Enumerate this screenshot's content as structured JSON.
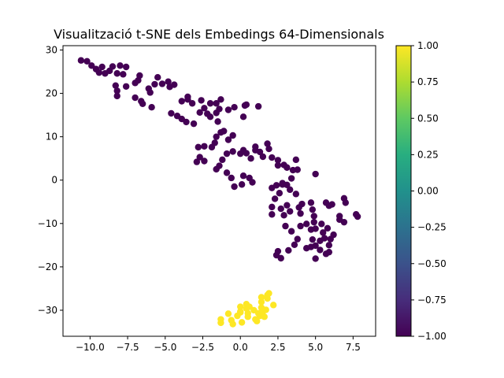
{
  "chart_data": {
    "type": "scatter",
    "title": "Visualització t-SNE dels Embedings 64-Dimensionals",
    "xlabel": "",
    "ylabel": "",
    "xlim": [
      -11.8,
      9.0
    ],
    "ylim": [
      -36.0,
      31.0
    ],
    "x_ticks": [
      "−10.0",
      "−7.5",
      "−5.0",
      "−2.5",
      "0.0",
      "2.5",
      "5.0",
      "7.5"
    ],
    "x_tick_values": [
      -10.0,
      -7.5,
      -5.0,
      -2.5,
      0.0,
      2.5,
      5.0,
      7.5
    ],
    "y_ticks": [
      "−30",
      "−20",
      "−10",
      "0",
      "10",
      "20",
      "30"
    ],
    "y_tick_values": [
      -30,
      -20,
      -10,
      0,
      10,
      20,
      30
    ],
    "grid": false,
    "colormap": "viridis",
    "colorbar": {
      "range": [
        -1.0,
        1.0
      ],
      "ticks": [
        "−1.00",
        "−0.75",
        "−0.50",
        "−0.25",
        "0.00",
        "0.25",
        "0.50",
        "0.75",
        "1.00"
      ],
      "tick_values": [
        -1.0,
        -0.75,
        -0.5,
        -0.25,
        0.0,
        0.25,
        0.5,
        0.75,
        1.0
      ]
    },
    "series": [
      {
        "label_value": -1,
        "color": "#440154",
        "points": [
          [
            -10.6,
            27.6
          ],
          [
            -10.2,
            27.4
          ],
          [
            -9.9,
            26.4
          ],
          [
            -9.6,
            25.6
          ],
          [
            -9.4,
            24.8
          ],
          [
            -9.2,
            26.1
          ],
          [
            -9.0,
            24.6
          ],
          [
            -8.7,
            25.2
          ],
          [
            -8.5,
            26.2
          ],
          [
            -8.2,
            24.6
          ],
          [
            -8.0,
            26.4
          ],
          [
            -7.8,
            24.4
          ],
          [
            -7.6,
            26.1
          ],
          [
            -8.3,
            21.8
          ],
          [
            -8.2,
            20.6
          ],
          [
            -8.2,
            19.4
          ],
          [
            -7.6,
            21.6
          ],
          [
            -7.0,
            22.4
          ],
          [
            -6.8,
            23.0
          ],
          [
            -6.7,
            24.1
          ],
          [
            -6.6,
            18.2
          ],
          [
            -6.5,
            17.6
          ],
          [
            -6.1,
            21.1
          ],
          [
            -6.0,
            20.2
          ],
          [
            -5.9,
            16.8
          ],
          [
            -5.7,
            22.1
          ],
          [
            -5.5,
            23.7
          ],
          [
            -5.2,
            22.2
          ],
          [
            -7.0,
            19.0
          ],
          [
            -4.8,
            22.7
          ],
          [
            -4.7,
            21.5
          ],
          [
            -4.4,
            22.0
          ],
          [
            -3.9,
            18.2
          ],
          [
            -3.5,
            19.2
          ],
          [
            -3.5,
            18.6
          ],
          [
            -3.2,
            17.7
          ],
          [
            -2.6,
            18.4
          ],
          [
            -2.4,
            16.6
          ],
          [
            -2.0,
            17.7
          ],
          [
            -1.6,
            17.7
          ],
          [
            -1.3,
            18.6
          ],
          [
            -0.8,
            16.2
          ],
          [
            -0.4,
            16.8
          ],
          [
            0.3,
            17.2
          ],
          [
            0.2,
            14.6
          ],
          [
            0.4,
            17.4
          ],
          [
            1.2,
            17.0
          ],
          [
            -4.6,
            15.4
          ],
          [
            -4.2,
            14.8
          ],
          [
            -3.9,
            14.1
          ],
          [
            -3.6,
            13.4
          ],
          [
            -3.1,
            13.0
          ],
          [
            -2.7,
            15.6
          ],
          [
            -2.2,
            15.3
          ],
          [
            -2.0,
            14.6
          ],
          [
            -1.6,
            15.5
          ],
          [
            -1.4,
            16.4
          ],
          [
            -1.5,
            13.5
          ],
          [
            -1.1,
            11.3
          ],
          [
            -1.3,
            11.0
          ],
          [
            -1.6,
            10.0
          ],
          [
            -1.7,
            8.6
          ],
          [
            -0.8,
            9.3
          ],
          [
            -0.5,
            10.3
          ],
          [
            -1.9,
            7.6
          ],
          [
            -2.4,
            7.8
          ],
          [
            -2.8,
            7.6
          ],
          [
            -2.7,
            5.3
          ],
          [
            -2.9,
            4.2
          ],
          [
            -2.4,
            4.4
          ],
          [
            -1.2,
            4.7
          ],
          [
            -1.4,
            3.3
          ],
          [
            -1.6,
            2.5
          ],
          [
            -0.9,
            1.7
          ],
          [
            -0.9,
            6.1
          ],
          [
            -0.5,
            6.6
          ],
          [
            0.0,
            6.1
          ],
          [
            0.2,
            6.9
          ],
          [
            0.4,
            6.2
          ],
          [
            0.7,
            5.0
          ],
          [
            1.0,
            6.9
          ],
          [
            1.3,
            6.5
          ],
          [
            1.0,
            7.7
          ],
          [
            1.5,
            5.4
          ],
          [
            1.8,
            8.4
          ],
          [
            1.9,
            7.2
          ],
          [
            2.1,
            5.2
          ],
          [
            2.5,
            4.6
          ],
          [
            2.5,
            3.4
          ],
          [
            2.9,
            3.5
          ],
          [
            3.1,
            2.9
          ],
          [
            3.5,
            2.3
          ],
          [
            3.7,
            4.7
          ],
          [
            3.8,
            2.4
          ],
          [
            -0.6,
            0.5
          ],
          [
            0.2,
            1.0
          ],
          [
            0.6,
            0.5
          ],
          [
            0.8,
            -0.5
          ],
          [
            0.1,
            -1.0
          ],
          [
            -0.4,
            -1.5
          ],
          [
            2.1,
            -1.8
          ],
          [
            2.4,
            -1.2
          ],
          [
            2.8,
            -0.7
          ],
          [
            3.1,
            -1.1
          ],
          [
            3.3,
            -2.2
          ],
          [
            2.6,
            -3.0
          ],
          [
            2.8,
            -1.0
          ],
          [
            3.4,
            0.4
          ],
          [
            3.7,
            -3.2
          ],
          [
            3.1,
            -5.8
          ],
          [
            3.3,
            -7.2
          ],
          [
            2.9,
            -8.1
          ],
          [
            2.7,
            -6.6
          ],
          [
            2.1,
            -7.9
          ],
          [
            2.1,
            -6.2
          ],
          [
            2.3,
            -4.3
          ],
          [
            3.9,
            -6.3
          ],
          [
            4.0,
            -7.7
          ],
          [
            4.1,
            -5.5
          ],
          [
            4.7,
            -5.2
          ],
          [
            4.8,
            -6.8
          ],
          [
            4.9,
            -8.3
          ],
          [
            5.0,
            1.4
          ],
          [
            5.4,
            -10.1
          ],
          [
            5.7,
            -5.2
          ],
          [
            5.9,
            -5.9
          ],
          [
            6.1,
            -5.6
          ],
          [
            6.6,
            -8.3
          ],
          [
            6.9,
            -4.2
          ],
          [
            7.0,
            -5.2
          ],
          [
            6.9,
            -9.7
          ],
          [
            6.6,
            -9.1
          ],
          [
            7.8,
            -8.4
          ],
          [
            7.7,
            -7.9
          ],
          [
            3.0,
            -10.6
          ],
          [
            3.4,
            -11.8
          ],
          [
            3.6,
            -14.9
          ],
          [
            3.8,
            -13.6
          ],
          [
            3.2,
            -16.2
          ],
          [
            4.0,
            -10.6
          ],
          [
            4.4,
            -10.1
          ],
          [
            4.9,
            -9.7
          ],
          [
            4.7,
            -11.4
          ],
          [
            4.8,
            -13.7
          ],
          [
            5.0,
            -15.1
          ],
          [
            5.3,
            -14.0
          ],
          [
            5.6,
            -13.4
          ],
          [
            5.3,
            -16.1
          ],
          [
            5.7,
            -17.0
          ],
          [
            5.9,
            -15.0
          ],
          [
            6.0,
            -13.6
          ],
          [
            5.0,
            -18.1
          ],
          [
            4.4,
            -15.7
          ],
          [
            5.5,
            -12.1
          ],
          [
            5.8,
            -11.1
          ],
          [
            6.2,
            -12.6
          ],
          [
            2.4,
            -17.3
          ],
          [
            2.7,
            -18.0
          ],
          [
            2.5,
            -16.4
          ],
          [
            4.7,
            -15.4
          ],
          [
            5.9,
            -16.6
          ],
          [
            5.0,
            -11.2
          ]
        ]
      },
      {
        "label_value": 1,
        "color": "#fde725",
        "points": [
          [
            -1.3,
            -32.9
          ],
          [
            -1.3,
            -32.1
          ],
          [
            -0.8,
            -30.8
          ],
          [
            -0.6,
            -32.3
          ],
          [
            -0.5,
            -33.2
          ],
          [
            -0.2,
            -31.3
          ],
          [
            0.0,
            -30.5
          ],
          [
            0.0,
            -29.2
          ],
          [
            0.0,
            -30.3
          ],
          [
            0.1,
            -32.8
          ],
          [
            0.4,
            -28.6
          ],
          [
            0.4,
            -29.6
          ],
          [
            0.5,
            -31.5
          ],
          [
            0.5,
            -30.7
          ],
          [
            0.6,
            -29.2
          ],
          [
            0.9,
            -30.0
          ],
          [
            1.0,
            -32.1
          ],
          [
            1.1,
            -32.5
          ],
          [
            1.2,
            -30.7
          ],
          [
            1.3,
            -31.3
          ],
          [
            1.4,
            -29.4
          ],
          [
            1.4,
            -28.1
          ],
          [
            1.4,
            -27.0
          ],
          [
            1.5,
            -30.3
          ],
          [
            1.6,
            -31.5
          ],
          [
            1.7,
            -29.9
          ],
          [
            1.8,
            -27.3
          ],
          [
            1.8,
            -26.5
          ],
          [
            1.9,
            -26.1
          ],
          [
            2.2,
            -28.8
          ]
        ]
      }
    ]
  }
}
